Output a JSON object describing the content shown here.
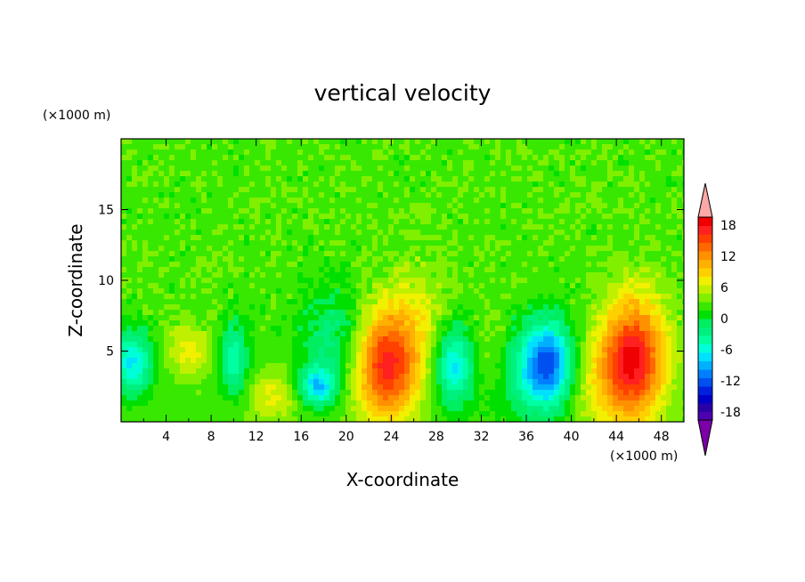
{
  "chart_data": {
    "type": "heatmap",
    "title": "vertical velocity",
    "xlabel": "X-coordinate",
    "ylabel": "Z-coordinate",
    "x_unit": "(×1000 m)",
    "y_unit": "(×1000 m)",
    "xlim": [
      0,
      50
    ],
    "ylim": [
      0,
      20
    ],
    "x_ticks": [
      "4",
      "8",
      "12",
      "16",
      "20",
      "24",
      "28",
      "32",
      "36",
      "40",
      "44",
      "48"
    ],
    "y_ticks": [
      "5",
      "10",
      "15"
    ],
    "colorbar": {
      "levels": [
        -21,
        -19.5,
        -18,
        -16.5,
        -15,
        -13.5,
        -12,
        -10.5,
        -9,
        -7.5,
        -6,
        -4.5,
        -3,
        -1.5,
        0,
        1.5,
        3,
        4.5,
        6,
        7.5,
        9,
        10.5,
        12,
        13.5,
        15,
        16.5,
        18,
        19.5,
        21
      ],
      "tick_labels": [
        "18",
        "12",
        "6",
        "0",
        "-6",
        "-12",
        "-18"
      ],
      "tick_values": [
        18,
        12,
        6,
        0,
        -6,
        -12,
        -18
      ],
      "colors": [
        "#7b00a8",
        "#4d00b0",
        "#2a00a8",
        "#0000c8",
        "#0020e0",
        "#0050f0",
        "#0080ff",
        "#00b0ff",
        "#00e0ff",
        "#00ffd8",
        "#00ffa0",
        "#00f080",
        "#00ee60",
        "#00e000",
        "#38e800",
        "#80f000",
        "#c0f000",
        "#f0f000",
        "#ffd000",
        "#ffb000",
        "#ff9000",
        "#ff6800",
        "#ff4000",
        "#ff2020",
        "#f00000",
        "#ffa8a8"
      ],
      "extend": "both"
    },
    "features": [
      {
        "x": 23.5,
        "z": 4.0,
        "sx": 2.0,
        "sz": 2.8,
        "amp": 13
      },
      {
        "x": 45.5,
        "z": 4.5,
        "sx": 2.0,
        "sz": 3.0,
        "amp": 14
      },
      {
        "x": 38.0,
        "z": 4.0,
        "sx": 1.6,
        "sz": 2.2,
        "amp": -13
      },
      {
        "x": 29.5,
        "z": 4.0,
        "sx": 1.2,
        "sz": 2.0,
        "amp": -9
      },
      {
        "x": 17.5,
        "z": 2.5,
        "sx": 1.2,
        "sz": 1.0,
        "amp": -9
      },
      {
        "x": 10.0,
        "z": 4.5,
        "sx": 0.9,
        "sz": 1.8,
        "amp": -7
      },
      {
        "x": 1.0,
        "z": 4.2,
        "sx": 1.3,
        "sz": 1.5,
        "amp": -9
      },
      {
        "x": 6.0,
        "z": 5.0,
        "sx": 1.5,
        "sz": 1.3,
        "amp": 4
      },
      {
        "x": 13.5,
        "z": 1.8,
        "sx": 1.5,
        "sz": 1.2,
        "amp": 4
      },
      {
        "x": 33.0,
        "z": 4.5,
        "sx": 1.2,
        "sz": 2.2,
        "amp": 3
      },
      {
        "x": 19.0,
        "z": 6.0,
        "sx": 2.2,
        "sz": 2.5,
        "amp": -4.5
      },
      {
        "x": 35.0,
        "z": 3.5,
        "sx": 2.5,
        "sz": 2.5,
        "amp": -4
      },
      {
        "x": 26.5,
        "z": 7.0,
        "sx": 2.0,
        "sz": 3.0,
        "amp": 3
      },
      {
        "x": 42.0,
        "z": 2.5,
        "sx": 2.5,
        "sz": 2.5,
        "amp": 3
      }
    ]
  }
}
